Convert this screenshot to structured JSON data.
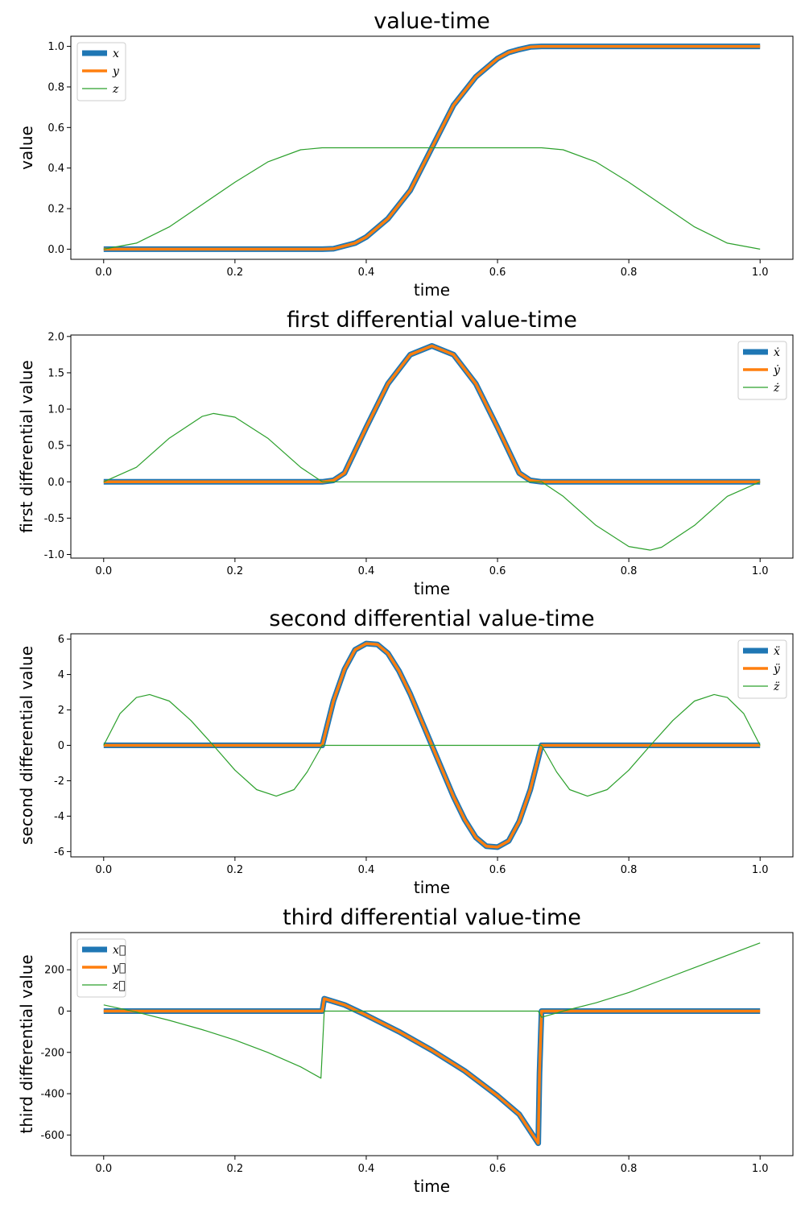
{
  "chart_data": [
    {
      "type": "line",
      "title": "value-time",
      "xlabel": "time",
      "ylabel": "value",
      "xlim": [
        -0.05,
        1.05
      ],
      "ylim": [
        -0.05,
        1.05
      ],
      "xticks": [
        "0.0",
        "0.2",
        "0.4",
        "0.6",
        "0.8",
        "1.0"
      ],
      "yticks": [
        "0.0",
        "0.2",
        "0.4",
        "0.6",
        "0.8",
        "1.0"
      ],
      "legend_position": "top-left",
      "series": [
        {
          "name": "x",
          "color": "#1f77b4",
          "x": [
            0,
            0.333,
            0.35,
            0.383,
            0.4,
            0.433,
            0.467,
            0.5,
            0.533,
            0.567,
            0.6,
            0.617,
            0.633,
            0.65,
            0.667,
            1.0
          ],
          "y": [
            0,
            0,
            0.002,
            0.03,
            0.06,
            0.15,
            0.29,
            0.5,
            0.71,
            0.85,
            0.94,
            0.97,
            0.985,
            0.997,
            1.0,
            1.0
          ]
        },
        {
          "name": "y",
          "color": "#ff7f0e",
          "x": [
            0,
            0.333,
            0.35,
            0.383,
            0.4,
            0.433,
            0.467,
            0.5,
            0.533,
            0.567,
            0.6,
            0.617,
            0.633,
            0.65,
            0.667,
            1.0
          ],
          "y": [
            0,
            0,
            0.002,
            0.03,
            0.06,
            0.15,
            0.29,
            0.5,
            0.71,
            0.85,
            0.94,
            0.97,
            0.985,
            0.997,
            1.0,
            1.0
          ]
        },
        {
          "name": "z",
          "color": "#2ca02c",
          "x": [
            0,
            0.05,
            0.1,
            0.15,
            0.2,
            0.25,
            0.3,
            0.333,
            0.5,
            0.667,
            0.7,
            0.75,
            0.8,
            0.85,
            0.9,
            0.95,
            1.0
          ],
          "y": [
            0,
            0.03,
            0.11,
            0.22,
            0.33,
            0.43,
            0.49,
            0.5,
            0.5,
            0.5,
            0.49,
            0.43,
            0.33,
            0.22,
            0.11,
            0.03,
            0
          ]
        }
      ]
    },
    {
      "type": "line",
      "title": "first differential value-time",
      "xlabel": "time",
      "ylabel": "first differential value",
      "xlim": [
        -0.05,
        1.05
      ],
      "ylim": [
        -1.05,
        2.02
      ],
      "xticks": [
        "0.0",
        "0.2",
        "0.4",
        "0.6",
        "0.8",
        "1.0"
      ],
      "yticks": [
        "-1.0",
        "-0.5",
        "0.0",
        "0.5",
        "1.0",
        "1.5",
        "2.0"
      ],
      "legend_position": "top-right",
      "series": [
        {
          "name": "ẋ",
          "color": "#1f77b4",
          "x": [
            0,
            0.333,
            0.35,
            0.367,
            0.4,
            0.433,
            0.467,
            0.5,
            0.533,
            0.567,
            0.6,
            0.633,
            0.65,
            0.667,
            1.0
          ],
          "y": [
            0,
            0,
            0.02,
            0.12,
            0.75,
            1.35,
            1.75,
            1.87,
            1.75,
            1.35,
            0.75,
            0.12,
            0.02,
            0,
            0
          ]
        },
        {
          "name": "ẏ",
          "color": "#ff7f0e",
          "x": [
            0,
            0.333,
            0.35,
            0.367,
            0.4,
            0.433,
            0.467,
            0.5,
            0.533,
            0.567,
            0.6,
            0.633,
            0.65,
            0.667,
            1.0
          ],
          "y": [
            0,
            0,
            0.02,
            0.12,
            0.75,
            1.35,
            1.75,
            1.87,
            1.75,
            1.35,
            0.75,
            0.12,
            0.02,
            0,
            0
          ]
        },
        {
          "name": "ż",
          "color": "#2ca02c",
          "x": [
            0,
            0.05,
            0.1,
            0.15,
            0.167,
            0.2,
            0.25,
            0.3,
            0.333,
            0.667,
            0.7,
            0.75,
            0.8,
            0.833,
            0.85,
            0.9,
            0.95,
            1.0
          ],
          "y": [
            0,
            0.2,
            0.6,
            0.9,
            0.94,
            0.89,
            0.6,
            0.2,
            0,
            0,
            -0.2,
            -0.6,
            -0.89,
            -0.94,
            -0.9,
            -0.6,
            -0.2,
            0
          ]
        }
      ]
    },
    {
      "type": "line",
      "title": "second differential value-time",
      "xlabel": "time",
      "ylabel": "second differential value",
      "xlim": [
        -0.05,
        1.05
      ],
      "ylim": [
        -6.3,
        6.3
      ],
      "xticks": [
        "0.0",
        "0.2",
        "0.4",
        "0.6",
        "0.8",
        "1.0"
      ],
      "yticks": [
        "-6",
        "-4",
        "-2",
        "0",
        "2",
        "4",
        "6"
      ],
      "legend_position": "top-right",
      "series": [
        {
          "name": "ẍ",
          "color": "#1f77b4",
          "x": [
            0,
            0.333,
            0.35,
            0.367,
            0.383,
            0.4,
            0.417,
            0.433,
            0.45,
            0.467,
            0.483,
            0.5,
            0.517,
            0.533,
            0.55,
            0.567,
            0.583,
            0.6,
            0.617,
            0.633,
            0.65,
            0.667,
            1.0
          ],
          "y": [
            0,
            0,
            2.5,
            4.3,
            5.4,
            5.75,
            5.7,
            5.2,
            4.2,
            2.9,
            1.5,
            0,
            -1.5,
            -2.9,
            -4.2,
            -5.2,
            -5.7,
            -5.75,
            -5.4,
            -4.3,
            -2.5,
            0,
            0
          ]
        },
        {
          "name": "ÿ",
          "color": "#ff7f0e",
          "x": [
            0,
            0.333,
            0.35,
            0.367,
            0.383,
            0.4,
            0.417,
            0.433,
            0.45,
            0.467,
            0.483,
            0.5,
            0.517,
            0.533,
            0.55,
            0.567,
            0.583,
            0.6,
            0.617,
            0.633,
            0.65,
            0.667,
            1.0
          ],
          "y": [
            0,
            0,
            2.5,
            4.3,
            5.4,
            5.75,
            5.7,
            5.2,
            4.2,
            2.9,
            1.5,
            0,
            -1.5,
            -2.9,
            -4.2,
            -5.2,
            -5.7,
            -5.75,
            -5.4,
            -4.3,
            -2.5,
            0,
            0
          ]
        },
        {
          "name": "z̈",
          "color": "#2ca02c",
          "x": [
            0,
            0.025,
            0.05,
            0.07,
            0.1,
            0.133,
            0.167,
            0.2,
            0.233,
            0.263,
            0.29,
            0.31,
            0.333,
            0.667,
            0.69,
            0.71,
            0.737,
            0.767,
            0.8,
            0.833,
            0.867,
            0.9,
            0.93,
            0.95,
            0.975,
            1.0
          ],
          "y": [
            0,
            1.8,
            2.7,
            2.87,
            2.5,
            1.4,
            0,
            -1.4,
            -2.5,
            -2.87,
            -2.5,
            -1.5,
            0,
            0,
            -1.5,
            -2.5,
            -2.87,
            -2.5,
            -1.4,
            0,
            1.4,
            2.5,
            2.87,
            2.7,
            1.8,
            0
          ]
        }
      ]
    },
    {
      "type": "line",
      "title": "third differential value-time",
      "xlabel": "time",
      "ylabel": "third differential value",
      "xlim": [
        -0.05,
        1.05
      ],
      "ylim": [
        -700,
        380
      ],
      "xticks": [
        "0.0",
        "0.2",
        "0.4",
        "0.6",
        "0.8",
        "1.0"
      ],
      "yticks": [
        "-600",
        "-400",
        "-200",
        "0",
        "200"
      ],
      "legend_position": "top-left",
      "series": [
        {
          "name": "x⃛",
          "color": "#1f77b4",
          "x": [
            0,
            0.333,
            0.336,
            0.367,
            0.4,
            0.45,
            0.5,
            0.55,
            0.6,
            0.633,
            0.662,
            0.664,
            0.667,
            1.0
          ],
          "y": [
            0,
            0,
            60,
            30,
            -20,
            -100,
            -190,
            -290,
            -410,
            -500,
            -640,
            -300,
            0,
            0
          ]
        },
        {
          "name": "y⃛",
          "color": "#ff7f0e",
          "x": [
            0,
            0.333,
            0.336,
            0.367,
            0.4,
            0.45,
            0.5,
            0.55,
            0.6,
            0.633,
            0.662,
            0.664,
            0.667,
            1.0
          ],
          "y": [
            0,
            0,
            60,
            30,
            -20,
            -100,
            -190,
            -290,
            -410,
            -500,
            -640,
            -300,
            0,
            0
          ]
        },
        {
          "name": "z⃛",
          "color": "#2ca02c",
          "x": [
            0,
            0.05,
            0.1,
            0.15,
            0.2,
            0.25,
            0.3,
            0.331,
            0.336,
            0.662,
            0.667,
            0.7,
            0.75,
            0.8,
            0.85,
            0.9,
            0.95,
            1.0
          ],
          "y": [
            30,
            -5,
            -45,
            -90,
            -140,
            -200,
            -270,
            -325,
            0,
            0,
            -30,
            0,
            40,
            90,
            150,
            210,
            270,
            330
          ]
        }
      ]
    }
  ]
}
